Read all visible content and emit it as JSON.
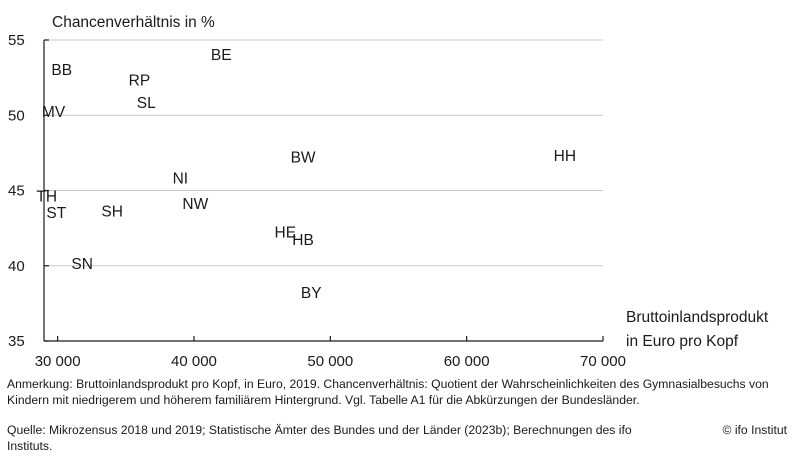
{
  "chart_data": {
    "type": "scatter",
    "ylabel": "Chancenverhältnis in %",
    "xlabel_line1": "Bruttoinlandsprodukt",
    "xlabel_line2": "in Euro pro Kopf",
    "xlim": [
      29000,
      70000
    ],
    "ylim": [
      35,
      55
    ],
    "xticks": [
      30000,
      40000,
      50000,
      60000,
      70000
    ],
    "xtick_labels": [
      "30 000",
      "40 000",
      "50 000",
      "60 000",
      "70 000"
    ],
    "yticks": [
      35,
      40,
      45,
      50,
      55
    ],
    "ytick_labels": [
      "35",
      "40",
      "45",
      "50",
      "55"
    ],
    "grid": "horizontal",
    "points": [
      {
        "label": "BE",
        "x": 42000,
        "y": 54.0
      },
      {
        "label": "BB",
        "x": 30300,
        "y": 53.0
      },
      {
        "label": "RP",
        "x": 36000,
        "y": 52.3
      },
      {
        "label": "SL",
        "x": 36500,
        "y": 50.8
      },
      {
        "label": "MV",
        "x": 29700,
        "y": 50.2
      },
      {
        "label": "BW",
        "x": 48000,
        "y": 47.2
      },
      {
        "label": "HH",
        "x": 67200,
        "y": 47.3
      },
      {
        "label": "NI",
        "x": 39000,
        "y": 45.8
      },
      {
        "label": "TH",
        "x": 29200,
        "y": 44.6
      },
      {
        "label": "NW",
        "x": 40100,
        "y": 44.1
      },
      {
        "label": "ST",
        "x": 29900,
        "y": 43.5
      },
      {
        "label": "SH",
        "x": 34000,
        "y": 43.6
      },
      {
        "label": "HE",
        "x": 46700,
        "y": 42.2
      },
      {
        "label": "HB",
        "x": 48000,
        "y": 41.7
      },
      {
        "label": "SN",
        "x": 31800,
        "y": 40.1
      },
      {
        "label": "BY",
        "x": 48600,
        "y": 38.2
      }
    ]
  },
  "notes": {
    "annotation": "Anmerkung: Bruttoinlandsprodukt pro Kopf, in Euro, 2019. Chancenverhältnis: Quotient der Wahrscheinlichkeiten des Gymnasialbesuchs von Kindern mit niedrigerem und höherem familiärem Hintergrund. Vgl. Tabelle A1 für die Abkürzungen der Bundesländer.",
    "source": "Quelle: Mikrozensus 2018 und 2019; Statistische Ämter des Bundes und der Länder (2023b); Berechnungen des ifo Instituts.",
    "copyright": "© ifo Institut"
  }
}
